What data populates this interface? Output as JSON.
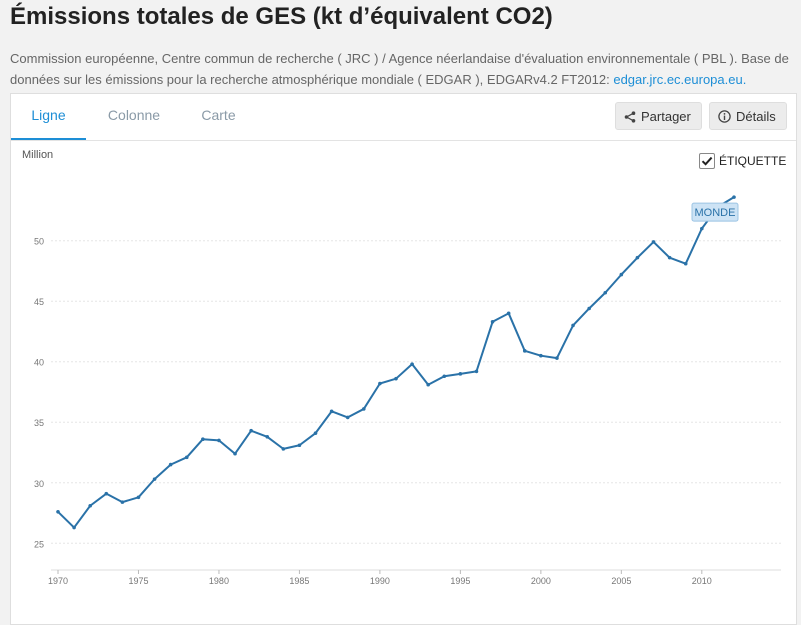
{
  "page": {
    "title": "Émissions totales de GES (kt d’équivalent CO2)",
    "source_text": "Commission européenne, Centre commun de recherche ( JRC ) / Agence néerlandaise d'évaluation environnementale ( PBL ). Base de données sur les émissions pour la recherche atmosphérique mondiale ( EDGAR ), EDGARv4.2 FT2012: ",
    "source_link": "edgar.jrc.ec.europa.eu."
  },
  "tabs": [
    {
      "label": "Ligne",
      "active": true
    },
    {
      "label": "Colonne",
      "active": false
    },
    {
      "label": "Carte",
      "active": false
    }
  ],
  "buttons": {
    "share_label": "Partager",
    "share_icon": "share-icon",
    "details_label": "Détails",
    "details_icon": "info-icon"
  },
  "legend_toggle": {
    "label": "ÉTIQUETTE",
    "checked": true
  },
  "colors": {
    "line": "#2a72a8",
    "accent": "#1d8ed6",
    "label_bg": "#cde3f5"
  },
  "chart_data": {
    "type": "line",
    "ylabel": "Million",
    "x": [
      1970,
      1971,
      1972,
      1973,
      1974,
      1975,
      1976,
      1977,
      1978,
      1979,
      1980,
      1981,
      1982,
      1983,
      1984,
      1985,
      1986,
      1987,
      1988,
      1989,
      1990,
      1991,
      1992,
      1993,
      1994,
      1995,
      1996,
      1997,
      1998,
      1999,
      2000,
      2001,
      2002,
      2003,
      2004,
      2005,
      2006,
      2007,
      2008,
      2009,
      2010,
      2011,
      2012
    ],
    "series": [
      {
        "name": "MONDE",
        "values": [
          27.6,
          26.3,
          28.1,
          29.1,
          28.4,
          28.8,
          30.3,
          31.5,
          32.1,
          33.6,
          33.5,
          32.4,
          34.3,
          33.8,
          32.8,
          33.1,
          34.1,
          35.9,
          35.4,
          36.1,
          38.2,
          38.6,
          39.8,
          38.1,
          38.8,
          39.0,
          39.2,
          43.3,
          44.0,
          40.9,
          40.5,
          40.3,
          43.0,
          44.4,
          45.7,
          47.2,
          48.6,
          49.9,
          48.6,
          48.1,
          51.0,
          52.8,
          53.6
        ]
      }
    ],
    "xlim": [
      1970,
      2012
    ],
    "ylim": [
      23.7,
      55.1
    ],
    "xticks": [
      1970,
      1975,
      1980,
      1985,
      1990,
      1995,
      2000,
      2005,
      2010
    ],
    "yticks": [
      25,
      30,
      35,
      40,
      45,
      50
    ],
    "grid": true,
    "legend": "end-of-line"
  }
}
